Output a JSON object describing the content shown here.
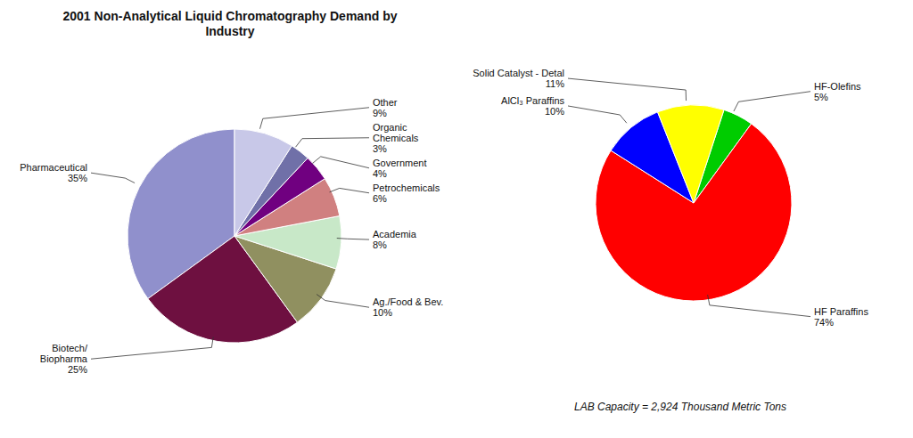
{
  "chart_data": [
    {
      "type": "pie",
      "title": "2001 Non-Analytical Liquid Chromatography Demand by\nIndustry",
      "categories": [
        "Pharmaceutical",
        "Biotech/\nBiopharma",
        "Ag./Food & Bev.",
        "Academia",
        "Petrochemicals",
        "Government",
        "Organic\nChemicals",
        "Other"
      ],
      "values": [
        35,
        25,
        10,
        8,
        6,
        4,
        3,
        9
      ],
      "value_labels": [
        "35%",
        "25%",
        "10%",
        "8%",
        "6%",
        "4%",
        "3%",
        "9%"
      ],
      "colors": [
        "#9090cc",
        "#6e1040",
        "#909060",
        "#c8e8c8",
        "#d08080",
        "#700080",
        "#7070a8",
        "#c8c8e8"
      ],
      "data_labels": true
    },
    {
      "type": "pie",
      "categories": [
        "HF-Olefins",
        "HF Paraffins",
        "AlCl₃ Paraffins",
        "Solid Catalyst - Detal"
      ],
      "values": [
        5,
        74,
        10,
        11
      ],
      "value_labels": [
        "5%",
        "74%",
        "10%",
        "11%"
      ],
      "colors": [
        "#00cc00",
        "#ff0000",
        "#0000ff",
        "#ffff00"
      ],
      "data_labels": true,
      "annotations": [
        "LAB Capacity = 2,924 Thousand Metric Tons"
      ]
    }
  ]
}
